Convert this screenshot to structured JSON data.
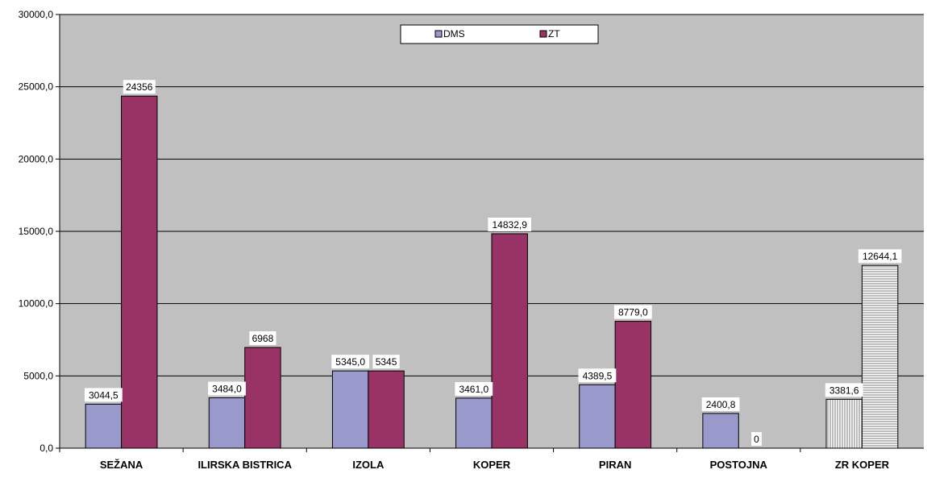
{
  "chart_data": {
    "type": "bar",
    "categories": [
      "SEŽANA",
      "ILIRSKA BISTRICA",
      "IZOLA",
      "KOPER",
      "PIRAN",
      "POSTOJNA",
      "ZR  KOPER"
    ],
    "series": [
      {
        "name": "DMS",
        "values": [
          3044.5,
          3484.0,
          5345.0,
          3461.0,
          4389.5,
          2400.8,
          3381.6
        ],
        "labels": [
          "3044,5",
          "3484,0",
          "5345,0",
          "3461,0",
          "4389,5",
          "2400,8",
          "3381,6"
        ],
        "color": "#9999cc"
      },
      {
        "name": "ZT",
        "values": [
          24356,
          6968,
          5345,
          14832.9,
          8779.0,
          0,
          12644.1
        ],
        "labels": [
          "24356",
          "6968",
          "5345",
          "14832,9",
          "8779,0",
          "0",
          "12644,1"
        ],
        "color": "#993366"
      }
    ],
    "pattern_category": "ZR  KOPER",
    "ylim": [
      0,
      30000
    ],
    "yticks": [
      "0,0",
      "5000,0",
      "10000,0",
      "15000,0",
      "20000,0",
      "25000,0",
      "30000,0"
    ],
    "grid": true,
    "legend_position": "top-center",
    "plot_background": "#c0c0c0"
  }
}
